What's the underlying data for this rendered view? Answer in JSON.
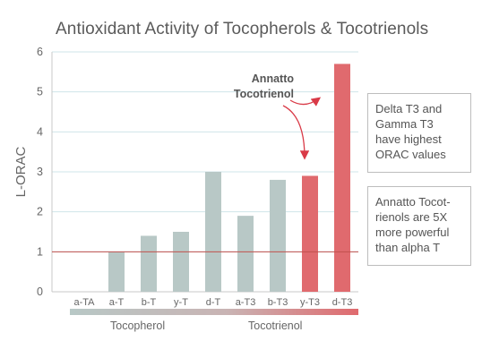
{
  "chart_data": {
    "type": "bar",
    "title": "Antioxidant Activity of Tocopherols & Tocotrienols",
    "ylabel": "L-ORAC",
    "xlabel": "",
    "ylim": [
      0,
      6
    ],
    "yticks": [
      "0",
      "1",
      "2",
      "3",
      "4",
      "5",
      "6"
    ],
    "categories": [
      "a-TA",
      "a-T",
      "b-T",
      "y-T",
      "d-T",
      "a-T3",
      "b-T3",
      "y-T3",
      "d-T3"
    ],
    "values": [
      0,
      1.0,
      1.4,
      1.5,
      3.0,
      1.9,
      2.8,
      2.9,
      5.7
    ],
    "bar_colors": [
      "#b8c8c6",
      "#b8c8c6",
      "#b8c8c6",
      "#b8c8c6",
      "#b8c8c6",
      "#b8c8c6",
      "#b8c8c6",
      "#e06a6e",
      "#e06a6e"
    ],
    "reference_line": {
      "value": 1,
      "color": "#c0504d"
    },
    "grid": true,
    "annotation_lines": [
      "Annatto",
      "Tocotrienol"
    ],
    "groups": [
      {
        "label": "Tocopherol"
      },
      {
        "label": "Tocotrienol"
      }
    ]
  },
  "notes": [
    {
      "lines": [
        "Delta T3 and",
        "Gamma T3",
        "have highest",
        "ORAC values"
      ]
    },
    {
      "lines": [
        "Annatto Tocot-",
        "rienols are 5X",
        "more powerful",
        "than alpha T"
      ]
    }
  ],
  "colors": {
    "grey_bar": "#b8c8c6",
    "red_bar": "#e06a6e",
    "arrow": "#d93a47",
    "gradient_start": "#b8c8c6",
    "gradient_end": "#e06a6e"
  }
}
